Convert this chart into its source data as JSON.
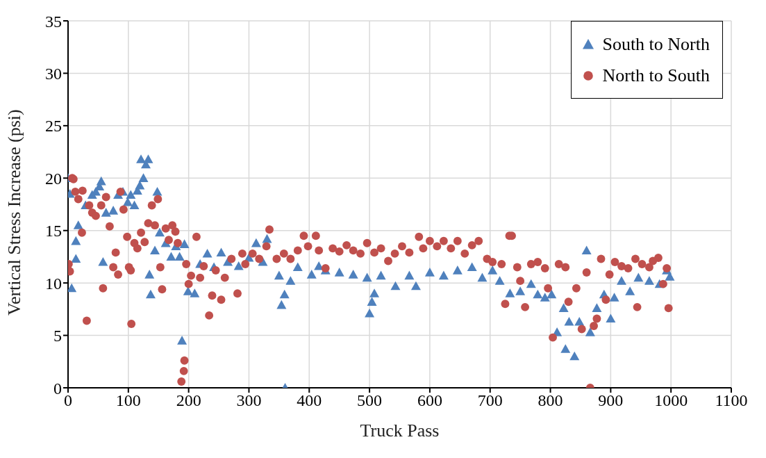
{
  "chart_data": {
    "type": "scatter",
    "xlabel": "Truck Pass",
    "ylabel": "Vertical Stress Increase (psi)",
    "xlim": [
      0,
      1100
    ],
    "xticks": [
      0,
      100,
      200,
      300,
      400,
      500,
      600,
      700,
      800,
      900,
      1000,
      1100
    ],
    "ylim": [
      0,
      35
    ],
    "yticks": [
      0,
      5,
      10,
      15,
      20,
      25,
      30,
      35
    ],
    "grid": true,
    "legend": "top right",
    "series": [
      {
        "name": "South to North",
        "color": "#4f81bd",
        "marker": "triangle",
        "x": [
          0,
          3,
          6,
          13,
          13,
          17,
          29,
          40,
          46,
          52,
          55,
          58,
          63,
          75,
          83,
          91,
          99,
          104,
          110,
          115,
          119,
          121,
          125,
          129,
          133,
          135,
          137,
          144,
          148,
          152,
          162,
          171,
          179,
          185,
          189,
          193,
          199,
          210,
          219,
          231,
          242,
          254,
          265,
          283,
          300,
          312,
          323,
          330,
          350,
          354,
          359,
          360,
          369,
          381,
          404,
          416,
          427,
          450,
          473,
          496,
          500,
          504,
          508,
          519,
          543,
          566,
          577,
          600,
          623,
          646,
          670,
          687,
          704,
          716,
          733,
          750,
          768,
          779,
          791,
          802,
          811,
          822,
          825,
          831,
          840,
          848,
          860,
          866,
          877,
          889,
          900,
          906,
          918,
          932,
          946,
          964,
          981,
          993,
          998
        ],
        "values": [
          20,
          18.5,
          9.5,
          12.3,
          14,
          15.5,
          17.4,
          18.4,
          18.7,
          19.2,
          19.7,
          12,
          16.7,
          16.9,
          18.4,
          18.7,
          17.7,
          18.4,
          17.4,
          18.8,
          19.3,
          21.8,
          20,
          21.3,
          21.8,
          10.8,
          8.9,
          13.1,
          18.7,
          14.8,
          13.8,
          12.5,
          13.5,
          12.5,
          4.5,
          13.7,
          9.2,
          9,
          11.8,
          12.8,
          11.5,
          12.9,
          12,
          11.6,
          12.4,
          13.8,
          12,
          14.2,
          10.7,
          7.9,
          8.9,
          0,
          10.2,
          11.5,
          10.8,
          11.6,
          11.2,
          11,
          10.8,
          10.5,
          7.1,
          8.2,
          9,
          10.7,
          9.7,
          10.7,
          9.7,
          11,
          10.7,
          11.2,
          11.5,
          10.5,
          11.2,
          10.2,
          9,
          9.2,
          9.9,
          8.9,
          8.6,
          8.9,
          5.3,
          7.6,
          3.7,
          6.3,
          3,
          6.3,
          13.1,
          5.3,
          7.6,
          8.9,
          6.6,
          8.6,
          10.2,
          9.2,
          10.5,
          10.2,
          9.9,
          11.2,
          10.6
        ]
      },
      {
        "name": "North to South",
        "color": "#c0504d",
        "marker": "circle",
        "x": [
          1,
          3,
          7,
          9,
          12,
          17,
          23,
          24,
          31,
          35,
          40,
          46,
          55,
          58,
          63,
          69,
          75,
          79,
          83,
          87,
          92,
          98,
          101,
          104,
          105,
          110,
          115,
          121,
          127,
          133,
          139,
          144,
          149,
          153,
          156,
          162,
          167,
          173,
          178,
          182,
          188,
          192,
          193,
          196,
          200,
          204,
          213,
          219,
          225,
          234,
          239,
          245,
          254,
          260,
          271,
          281,
          289,
          294,
          306,
          317,
          329,
          334,
          346,
          358,
          369,
          381,
          391,
          398,
          411,
          416,
          427,
          439,
          450,
          462,
          473,
          485,
          496,
          508,
          519,
          531,
          542,
          554,
          566,
          582,
          589,
          600,
          612,
          623,
          635,
          646,
          658,
          670,
          681,
          695,
          704,
          719,
          725,
          732,
          736,
          745,
          750,
          758,
          768,
          779,
          791,
          796,
          804,
          814,
          825,
          830,
          843,
          852,
          860,
          866,
          872,
          877,
          884,
          892,
          898,
          907,
          918,
          929,
          941,
          944,
          952,
          964,
          970,
          979,
          987,
          993,
          996
        ],
        "values": [
          11.8,
          11.1,
          20,
          19.9,
          18.7,
          18,
          14.8,
          18.8,
          6.4,
          17.4,
          16.7,
          16.4,
          17.4,
          9.5,
          18.2,
          15.4,
          11.5,
          12.9,
          10.8,
          18.7,
          17,
          14.4,
          11.5,
          11.2,
          6.1,
          13.8,
          13.3,
          14.8,
          13.9,
          15.7,
          17.4,
          15.5,
          18,
          11.5,
          9.4,
          15.2,
          14.1,
          15.5,
          14.9,
          13.8,
          0.6,
          1.6,
          2.6,
          11.8,
          9.9,
          10.7,
          14.4,
          10.5,
          11.6,
          6.9,
          8.8,
          11.2,
          8.4,
          10.5,
          12.3,
          9,
          12.8,
          11.8,
          12.8,
          12.3,
          13.5,
          15.1,
          12.3,
          12.8,
          12.3,
          13.1,
          14.5,
          13.5,
          14.5,
          13.1,
          11.4,
          13.3,
          13,
          13.6,
          13.1,
          12.8,
          13.8,
          12.9,
          13.3,
          12.1,
          12.8,
          13.5,
          12.9,
          14.4,
          13.3,
          14,
          13.5,
          14,
          13.3,
          14,
          12.8,
          13.6,
          14,
          12.3,
          12,
          11.8,
          8,
          14.5,
          14.5,
          11.5,
          10.2,
          7.7,
          11.8,
          12,
          11.4,
          9.5,
          4.8,
          11.8,
          11.5,
          8.2,
          9.5,
          5.6,
          11,
          0,
          5.9,
          6.6,
          12.3,
          8.4,
          10.8,
          12,
          11.6,
          11.4,
          12.3,
          7.7,
          11.8,
          11.5,
          12.1,
          12.4,
          9.9,
          11.4,
          7.6
        ]
      }
    ]
  }
}
